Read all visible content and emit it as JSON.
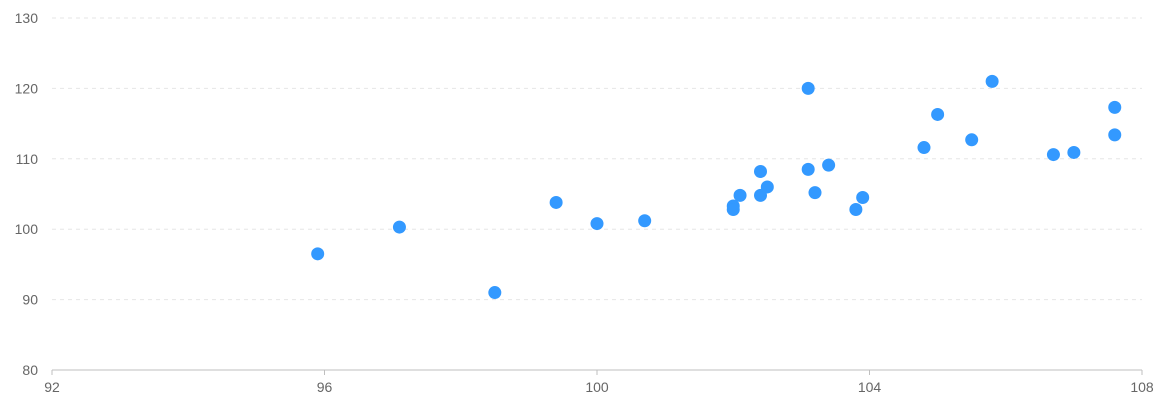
{
  "chart_data": {
    "type": "scatter",
    "title": "",
    "xlabel": "",
    "ylabel": "",
    "xlim": [
      92,
      108
    ],
    "ylim": [
      80,
      130
    ],
    "x_ticks": [
      "92",
      "96",
      "100",
      "104",
      "108"
    ],
    "y_ticks": [
      "80",
      "90",
      "100",
      "110",
      "120",
      "130"
    ],
    "grid": "horizontal dashed",
    "legend": "none",
    "color": "#3399ff",
    "points": [
      {
        "x": 95.9,
        "y": 96.5
      },
      {
        "x": 97.1,
        "y": 100.3
      },
      {
        "x": 98.5,
        "y": 91.0
      },
      {
        "x": 99.4,
        "y": 103.8
      },
      {
        "x": 100.0,
        "y": 100.8
      },
      {
        "x": 100.7,
        "y": 101.2
      },
      {
        "x": 102.0,
        "y": 103.3
      },
      {
        "x": 102.0,
        "y": 102.8
      },
      {
        "x": 102.1,
        "y": 104.8
      },
      {
        "x": 102.4,
        "y": 108.2
      },
      {
        "x": 102.4,
        "y": 104.8
      },
      {
        "x": 102.5,
        "y": 106.0
      },
      {
        "x": 103.1,
        "y": 120.0
      },
      {
        "x": 103.1,
        "y": 108.5
      },
      {
        "x": 103.2,
        "y": 105.2
      },
      {
        "x": 103.4,
        "y": 109.1
      },
      {
        "x": 103.8,
        "y": 102.8
      },
      {
        "x": 103.9,
        "y": 104.5
      },
      {
        "x": 104.8,
        "y": 111.6
      },
      {
        "x": 105.0,
        "y": 116.3
      },
      {
        "x": 105.5,
        "y": 112.7
      },
      {
        "x": 105.8,
        "y": 121.0
      },
      {
        "x": 106.7,
        "y": 110.6
      },
      {
        "x": 107.0,
        "y": 110.9
      },
      {
        "x": 107.6,
        "y": 117.3
      },
      {
        "x": 107.6,
        "y": 113.4
      }
    ]
  }
}
